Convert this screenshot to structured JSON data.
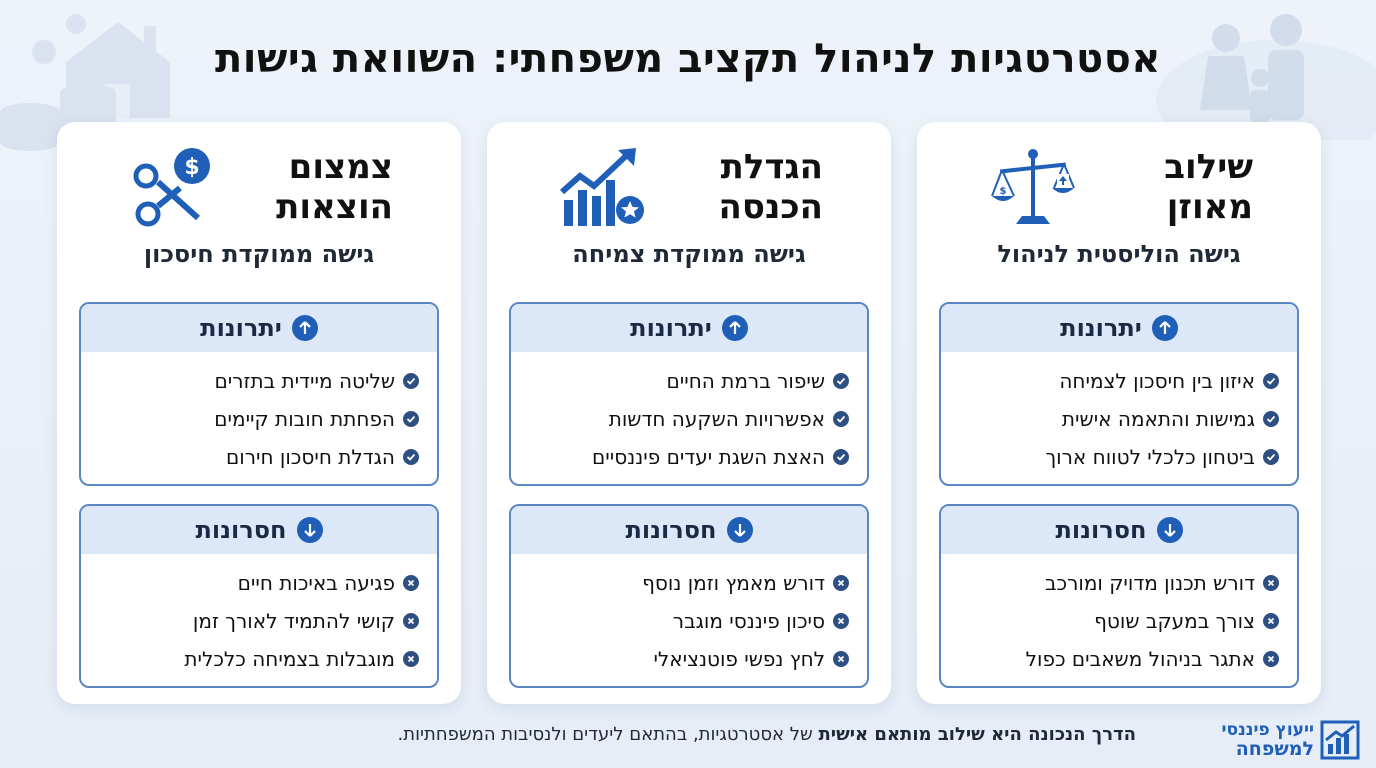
{
  "title": "אסטרטגיות לניהול תקציב משפחתי: השוואת גישות",
  "colors": {
    "accent": "#1f5fb8",
    "box_header": "#dce8f7",
    "border": "#5b86c4"
  },
  "cards": [
    {
      "title_line1": "שילוב",
      "title_line2": "מאוזן",
      "icon": "balance-scale-icon",
      "subtitle": "גישה הוליסטית לניהול",
      "pros_label": "יתרונות",
      "pros": [
        "איזון בין חיסכון לצמיחה",
        "גמישות והתאמה אישית",
        "ביטחון כלכלי לטווח ארוך"
      ],
      "cons_label": "חסרונות",
      "cons": [
        "דורש תכנון מדויק ומורכב",
        "צורך במעקב שוטף",
        "אתגר בניהול משאבים כפול"
      ]
    },
    {
      "title_line1": "הגדלת",
      "title_line2": "הכנסה",
      "icon": "growth-chart-icon",
      "subtitle": "גישה ממוקדת צמיחה",
      "pros_label": "יתרונות",
      "pros": [
        "שיפור ברמת החיים",
        "אפשרויות השקעה חדשות",
        "האצת השגת יעדים פיננסיים"
      ],
      "cons_label": "חסרונות",
      "cons": [
        "דורש מאמץ וזמן נוסף",
        "סיכון פיננסי מוגבר",
        "לחץ נפשי פוטנציאלי"
      ]
    },
    {
      "title_line1": "צמצום",
      "title_line2": "הוצאות",
      "icon": "scissors-dollar-icon",
      "subtitle": "גישה ממוקדת חיסכון",
      "pros_label": "יתרונות",
      "pros": [
        "שליטה מיידית בתזרים",
        "הפחתת חובות קיימים",
        "הגדלת חיסכון חירום"
      ],
      "cons_label": "חסרונות",
      "cons": [
        "פגיעה באיכות חיים",
        "קושי להתמיד לאורך זמן",
        "מוגבלות בצמיחה כלכלית"
      ]
    }
  ],
  "footer": {
    "bold": "הדרך הנכונה היא שילוב מותאם אישית",
    "rest": " של אסטרטגיות, בהתאם ליעדים ולנסיבות המשפחתיות."
  },
  "logo": {
    "line1": "ייעוץ פיננסי",
    "line2": "למשפחה"
  }
}
